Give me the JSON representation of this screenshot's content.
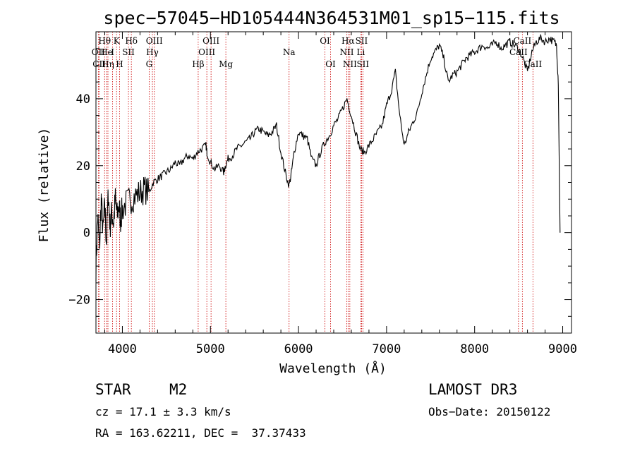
{
  "chart_data": {
    "type": "line",
    "title": "spec−57045−HD105444N364531M01_sp15−115.fits",
    "xlabel": "Wavelength (Å)",
    "ylabel": "Flux (relative)",
    "xlim": [
      3700,
      9100
    ],
    "ylim": [
      -30,
      60
    ],
    "x_ticks": [
      4000,
      5000,
      6000,
      7000,
      8000,
      9000
    ],
    "x_tick_labels": [
      "4000",
      "5000",
      "6000",
      "7000",
      "8000",
      "9000"
    ],
    "y_ticks": [
      -20,
      0,
      20,
      40
    ],
    "y_tick_labels": [
      "−20",
      "0",
      "20",
      "40"
    ],
    "grid": false,
    "series": [
      {
        "name": "spectrum",
        "x": [
          3700,
          3720,
          3740,
          3760,
          3780,
          3800,
          3820,
          3840,
          3860,
          3880,
          3900,
          3920,
          3940,
          3960,
          3980,
          4000,
          4050,
          4100,
          4150,
          4200,
          4250,
          4300,
          4350,
          4400,
          4450,
          4500,
          4550,
          4600,
          4650,
          4700,
          4750,
          4800,
          4850,
          4900,
          4950,
          4960,
          5000,
          5050,
          5100,
          5150,
          5170,
          5200,
          5250,
          5300,
          5350,
          5400,
          5450,
          5500,
          5550,
          5600,
          5650,
          5700,
          5750,
          5800,
          5850,
          5893,
          5920,
          5950,
          6000,
          6050,
          6100,
          6150,
          6200,
          6250,
          6300,
          6350,
          6400,
          6450,
          6500,
          6550,
          6600,
          6650,
          6700,
          6750,
          6800,
          6850,
          6900,
          6950,
          7000,
          7050,
          7100,
          7150,
          7200,
          7250,
          7300,
          7350,
          7400,
          7450,
          7500,
          7550,
          7600,
          7650,
          7700,
          7750,
          7800,
          7850,
          7900,
          7950,
          8000,
          8050,
          8100,
          8150,
          8200,
          8250,
          8300,
          8350,
          8400,
          8450,
          8500,
          8550,
          8600,
          8650,
          8700,
          8750,
          8800,
          8850,
          8900,
          8930,
          8950,
          8970
        ],
        "y": [
          -10,
          5,
          -5,
          10,
          0,
          8,
          -3,
          12,
          2,
          6,
          3,
          10,
          5,
          8,
          4,
          7,
          9,
          10,
          11,
          12,
          13,
          12,
          15,
          16,
          17,
          18,
          19,
          21,
          20,
          22,
          23,
          22,
          24,
          25,
          26,
          24,
          21,
          19,
          20,
          18,
          20,
          22,
          23,
          25,
          26,
          27,
          28,
          30,
          31,
          30,
          29,
          30,
          32,
          24,
          18,
          14,
          18,
          24,
          30,
          29,
          28,
          22,
          20,
          24,
          27,
          29,
          32,
          34,
          37,
          40,
          35,
          30,
          25,
          24,
          26,
          28,
          30,
          32,
          38,
          42,
          48,
          35,
          26,
          30,
          33,
          36,
          42,
          47,
          52,
          54,
          56,
          52,
          45,
          47,
          48,
          50,
          52,
          53,
          54,
          55,
          56,
          55,
          56,
          57,
          55,
          56,
          57,
          56,
          55,
          52,
          48,
          54,
          57,
          58,
          57,
          58,
          57,
          56,
          45,
          0
        ]
      }
    ],
    "lines": [
      {
        "label": "Hθ",
        "x": 3798,
        "row": 1
      },
      {
        "label": "OII",
        "x": 3727,
        "row": 2
      },
      {
        "label": "He",
        "x": 3820,
        "row": 2
      },
      {
        "label": "CII",
        "x": 3737,
        "row": 3
      },
      {
        "label": "Hη",
        "x": 3836,
        "row": 3
      },
      {
        "label": "K",
        "x": 3934,
        "row": 1
      },
      {
        "label": "I",
        "x": 3889,
        "row": 2
      },
      {
        "label": "SII",
        "x": 4069,
        "row": 2
      },
      {
        "label": "H",
        "x": 3968,
        "row": 3
      },
      {
        "label": "Hδ",
        "x": 4102,
        "row": 1
      },
      {
        "label": "OIII",
        "x": 4363,
        "row": 1
      },
      {
        "label": "Hγ",
        "x": 4341,
        "row": 2
      },
      {
        "label": "G",
        "x": 4304,
        "row": 3
      },
      {
        "label": "OIII",
        "x": 5007,
        "row": 1
      },
      {
        "label": "OIII",
        "x": 4959,
        "row": 2
      },
      {
        "label": "Hβ",
        "x": 4861,
        "row": 3
      },
      {
        "label": "Mg",
        "x": 5175,
        "row": 3
      },
      {
        "label": "Na",
        "x": 5893,
        "row": 2
      },
      {
        "label": "OI",
        "x": 6300,
        "row": 1
      },
      {
        "label": "OI",
        "x": 6364,
        "row": 3
      },
      {
        "label": "Hα",
        "x": 6563,
        "row": 1
      },
      {
        "label": "SII",
        "x": 6716,
        "row": 1
      },
      {
        "label": "NII",
        "x": 6548,
        "row": 2
      },
      {
        "label": "Li",
        "x": 6708,
        "row": 2
      },
      {
        "label": "NII",
        "x": 6583,
        "row": 3
      },
      {
        "label": "SII",
        "x": 6731,
        "row": 3
      },
      {
        "label": "CaII",
        "x": 8542,
        "row": 1
      },
      {
        "label": "CaII",
        "x": 8498,
        "row": 2
      },
      {
        "label": "CaII",
        "x": 8662,
        "row": 3
      }
    ]
  },
  "info": {
    "class": "STAR",
    "subclass": "M2",
    "survey": "LAMOST DR3",
    "cz": "cz = 17.1 ± 3.3 km/s",
    "obs_date": "Obs−Date: 20150122",
    "radec": "RA = 163.62211, DEC =  37.37433"
  },
  "colors": {
    "line_marker": "#cc0000",
    "spectrum": "#000000"
  }
}
